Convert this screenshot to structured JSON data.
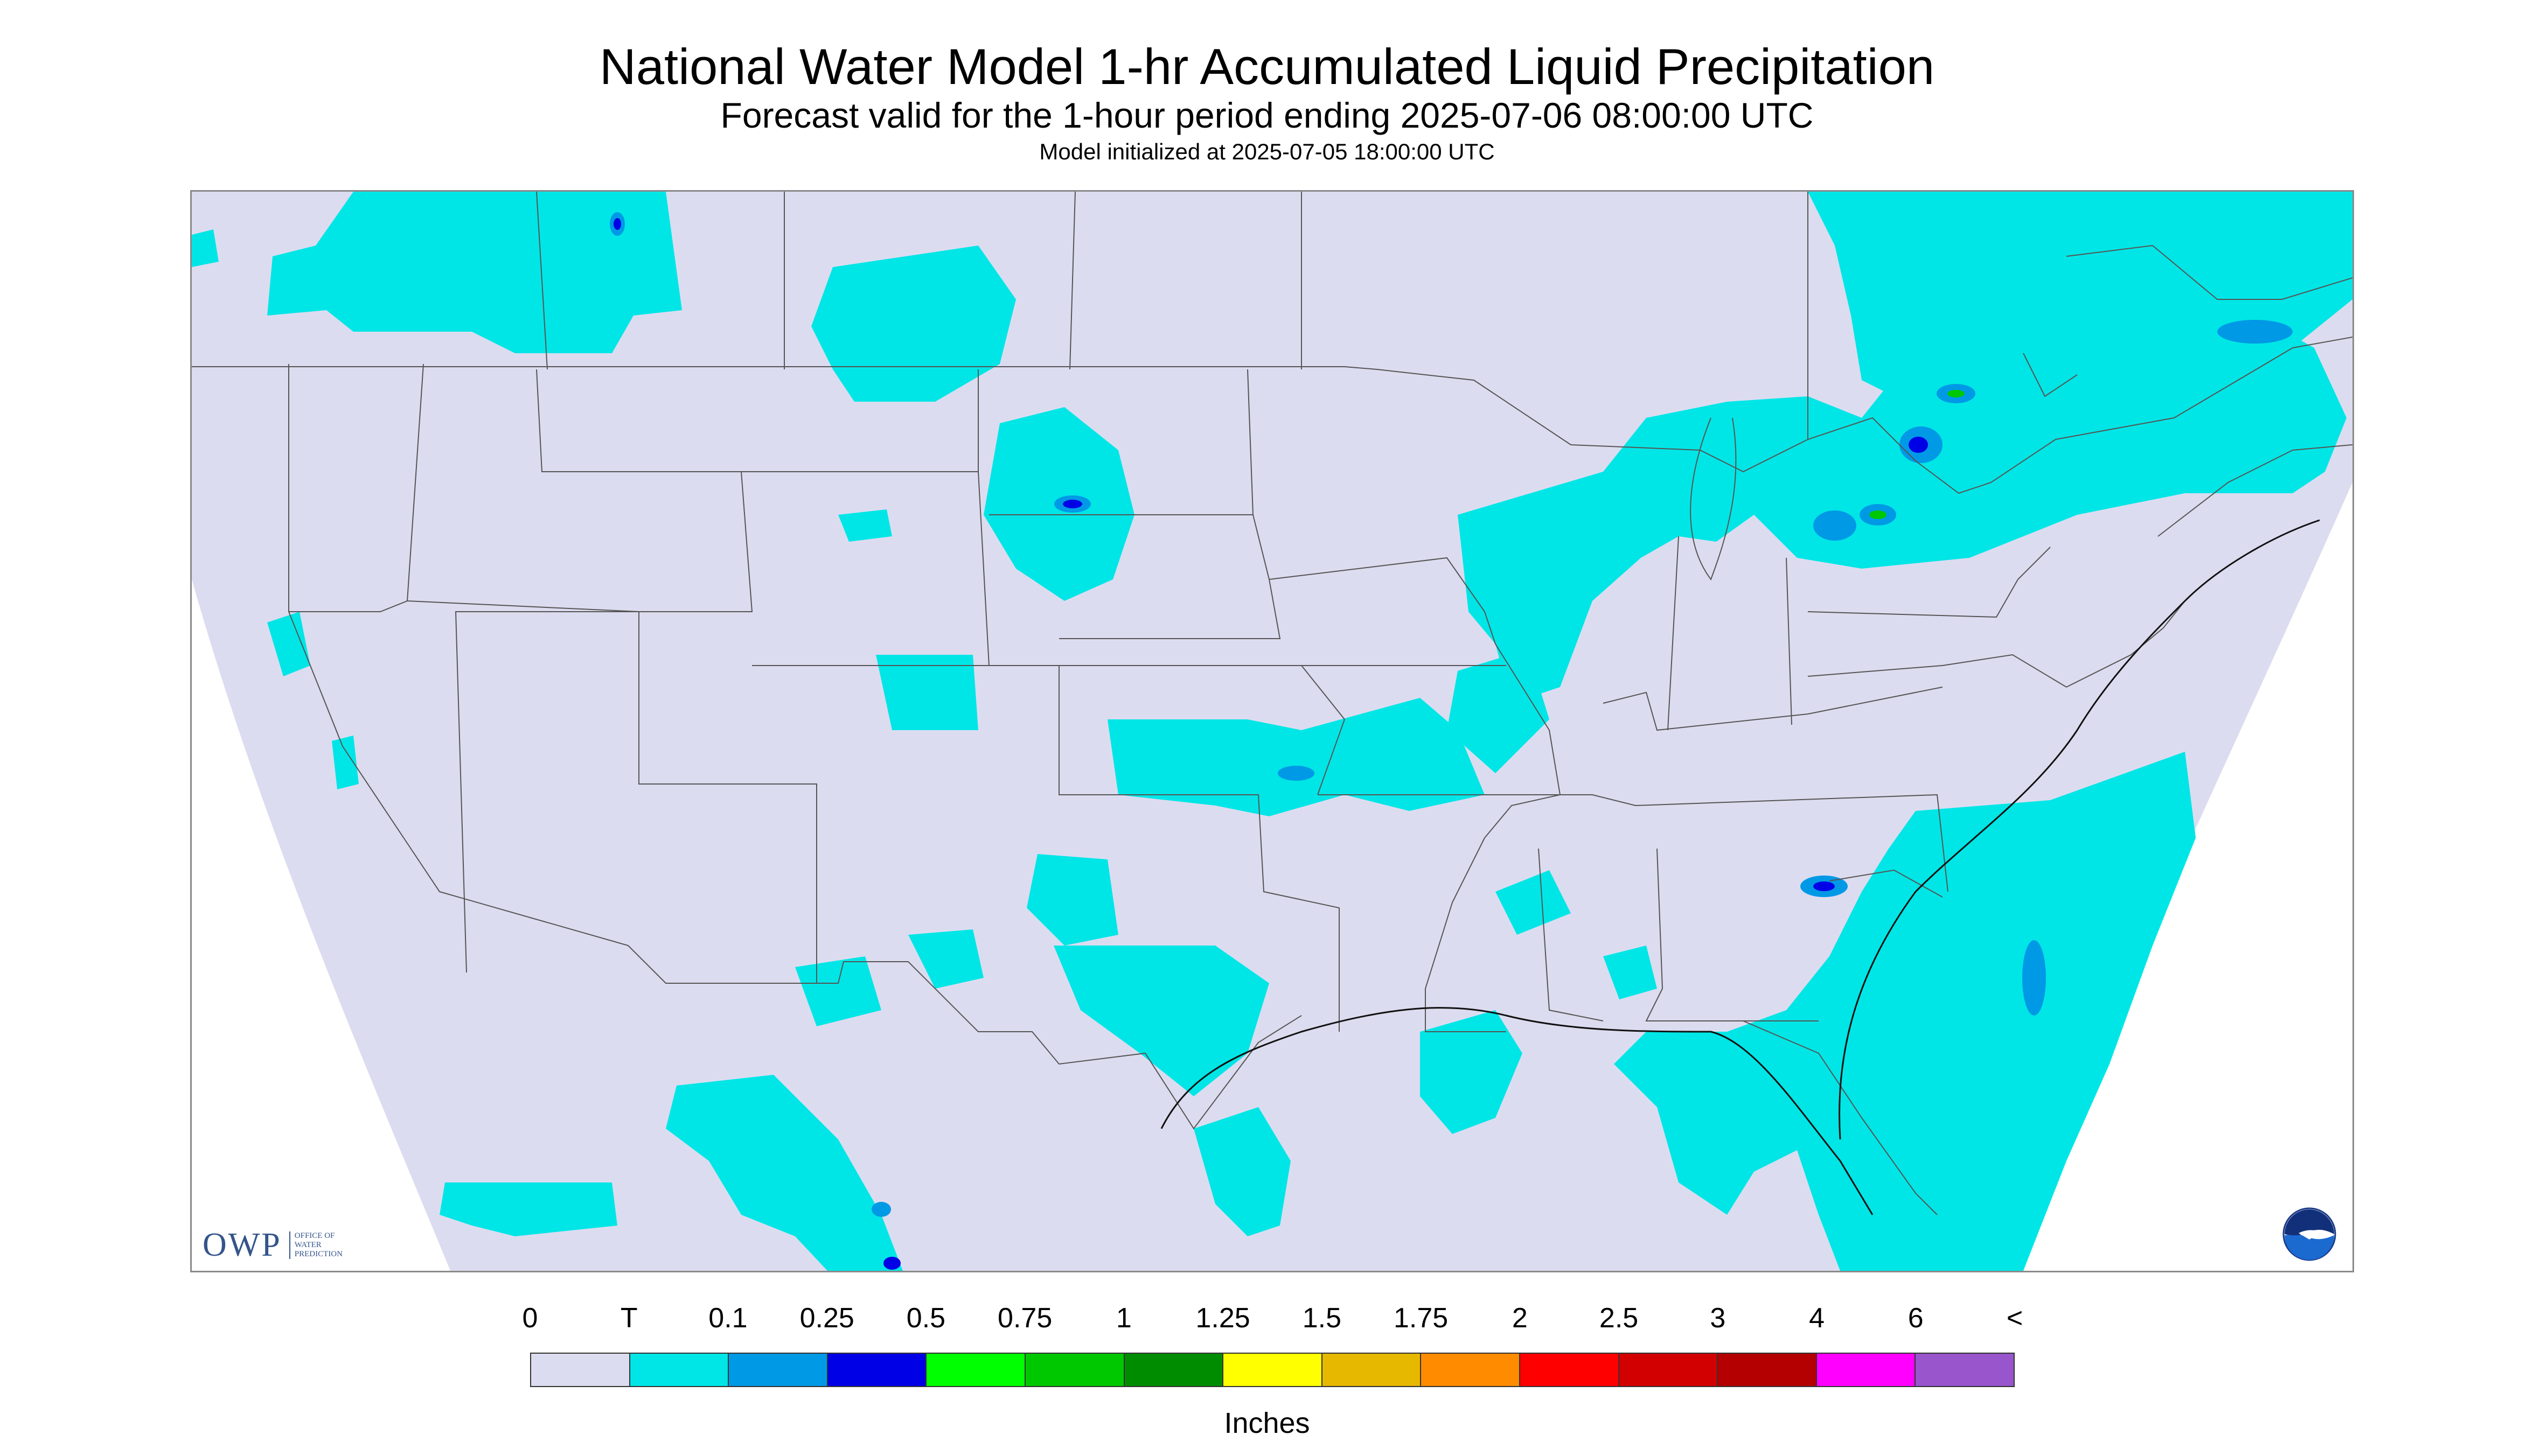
{
  "title": "National Water Model 1-hr Accumulated Liquid Precipitation",
  "subtitle": "Forecast valid for the 1-hour period ending 2025-07-06 08:00:00 UTC",
  "init_note": "Model initialized at 2025-07-05 18:00:00 UTC",
  "logos": {
    "owp_big": "OWP",
    "owp_sub": [
      "OFFICE OF",
      "WATER",
      "PREDICTION"
    ],
    "noaa_icon": "noaa-logo-icon"
  },
  "colors": {
    "no_data_outside": "#ffffff",
    "domain_background": "#dcdcf0",
    "trace": "#00e6e6",
    "boundary": "#555555"
  },
  "legend": {
    "labels": [
      "0",
      "T",
      "0.1",
      "0.25",
      "0.5",
      "0.75",
      "1",
      "1.25",
      "1.5",
      "1.75",
      "2",
      "2.5",
      "3",
      "4",
      "6",
      "<"
    ],
    "colors": [
      "#dcdcf0",
      "#00e6e6",
      "#0099e6",
      "#0000e6",
      "#00ff00",
      "#00c800",
      "#008c00",
      "#ffff00",
      "#e6b800",
      "#ff8c00",
      "#ff0000",
      "#d20000",
      "#b40000",
      "#ff00ff",
      "#9955cc"
    ],
    "units": "Inches"
  }
}
